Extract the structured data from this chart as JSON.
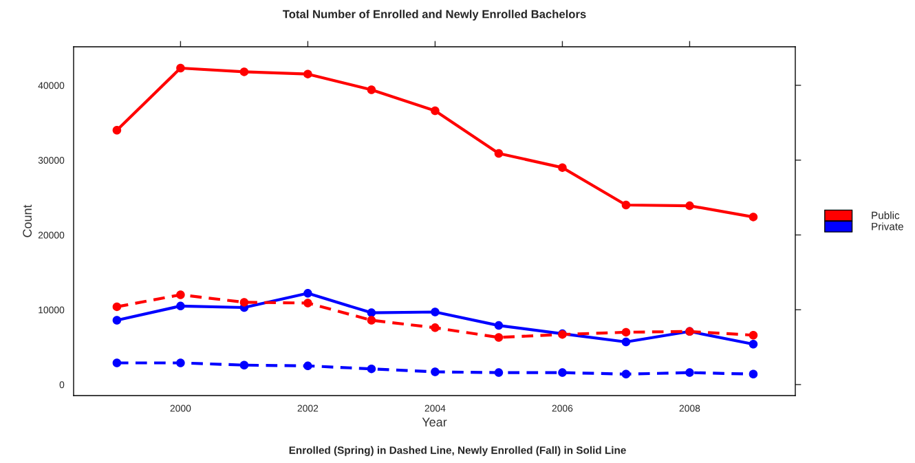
{
  "chart_data": {
    "type": "line",
    "title": "Total Number of Enrolled and Newly Enrolled Bachelors",
    "xlabel": "Year",
    "ylabel": "Count",
    "annotations": [
      "Enrolled (Spring) in Dashed Line, Newly Enrolled (Fall) in Solid Line"
    ],
    "x": [
      1999,
      2000,
      2001,
      2002,
      2003,
      2004,
      2005,
      2006,
      2007,
      2008,
      2009
    ],
    "series": [
      {
        "name": "Public",
        "color": "#ff0000",
        "line_style": "solid",
        "values": [
          34000,
          42300,
          41800,
          41500,
          39400,
          36600,
          30900,
          29000,
          24000,
          23900,
          22400
        ]
      },
      {
        "name": "Private",
        "color": "#0000ff",
        "line_style": "solid",
        "values": [
          8600,
          10500,
          10300,
          12200,
          9600,
          9700,
          7900,
          6800,
          5700,
          7100,
          5400
        ]
      },
      {
        "color": "#ff0000",
        "line_style": "dashed",
        "values": [
          10400,
          12000,
          11000,
          10900,
          8600,
          7600,
          6300,
          6700,
          7000,
          7100,
          6600
        ]
      },
      {
        "color": "#0000ff",
        "line_style": "dashed",
        "values": [
          2900,
          2900,
          2600,
          2500,
          2100,
          1700,
          1600,
          1600,
          1400,
          1600,
          1400
        ]
      }
    ],
    "xlim": [
      1998.32,
      2009.66
    ],
    "ylim": [
      -1470,
      45150
    ],
    "xticks": [
      2000,
      2002,
      2004,
      2006,
      2008
    ],
    "yticks": [
      0,
      10000,
      20000,
      30000,
      40000
    ],
    "marker": "circle",
    "grid": false,
    "legend": "right"
  }
}
